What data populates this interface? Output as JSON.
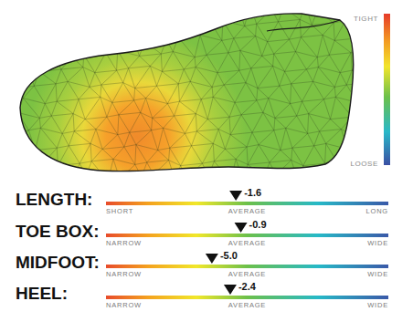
{
  "chart_data": [
    {
      "type": "gauge",
      "title": "LENGTH:",
      "values": [
        -1.6
      ],
      "value_labels": [
        "-1.6"
      ],
      "data_labels": true,
      "xlim": [
        -20,
        20
      ],
      "xticks": [
        {
          "value": -20,
          "label": "SHORT"
        },
        {
          "value": 0,
          "label": "AVERAGE"
        },
        {
          "value": 20,
          "label": "LONG"
        }
      ]
    },
    {
      "type": "gauge",
      "title": "TOE BOX:",
      "values": [
        -0.9
      ],
      "value_labels": [
        "-0.9"
      ],
      "data_labels": true,
      "xlim": [
        -20,
        20
      ],
      "xticks": [
        {
          "value": -20,
          "label": "NARROW"
        },
        {
          "value": 0,
          "label": "AVERAGE"
        },
        {
          "value": 20,
          "label": "WIDE"
        }
      ]
    },
    {
      "type": "gauge",
      "title": "MIDFOOT:",
      "values": [
        -5.0
      ],
      "value_labels": [
        "-5.0"
      ],
      "data_labels": true,
      "xlim": [
        -20,
        20
      ],
      "xticks": [
        {
          "value": -20,
          "label": "NARROW"
        },
        {
          "value": 0,
          "label": "AVERAGE"
        },
        {
          "value": 20,
          "label": "WIDE"
        }
      ]
    },
    {
      "type": "gauge",
      "title": "HEEL:",
      "values": [
        -2.4
      ],
      "value_labels": [
        "-2.4"
      ],
      "data_labels": true,
      "xlim": [
        -20,
        20
      ],
      "xticks": [
        {
          "value": -20,
          "label": "NARROW"
        },
        {
          "value": 0,
          "label": "AVERAGE"
        },
        {
          "value": 20,
          "label": "WIDE"
        }
      ]
    }
  ],
  "color_scale": {
    "top_label": "TIGHT",
    "bottom_label": "LOOSE"
  }
}
